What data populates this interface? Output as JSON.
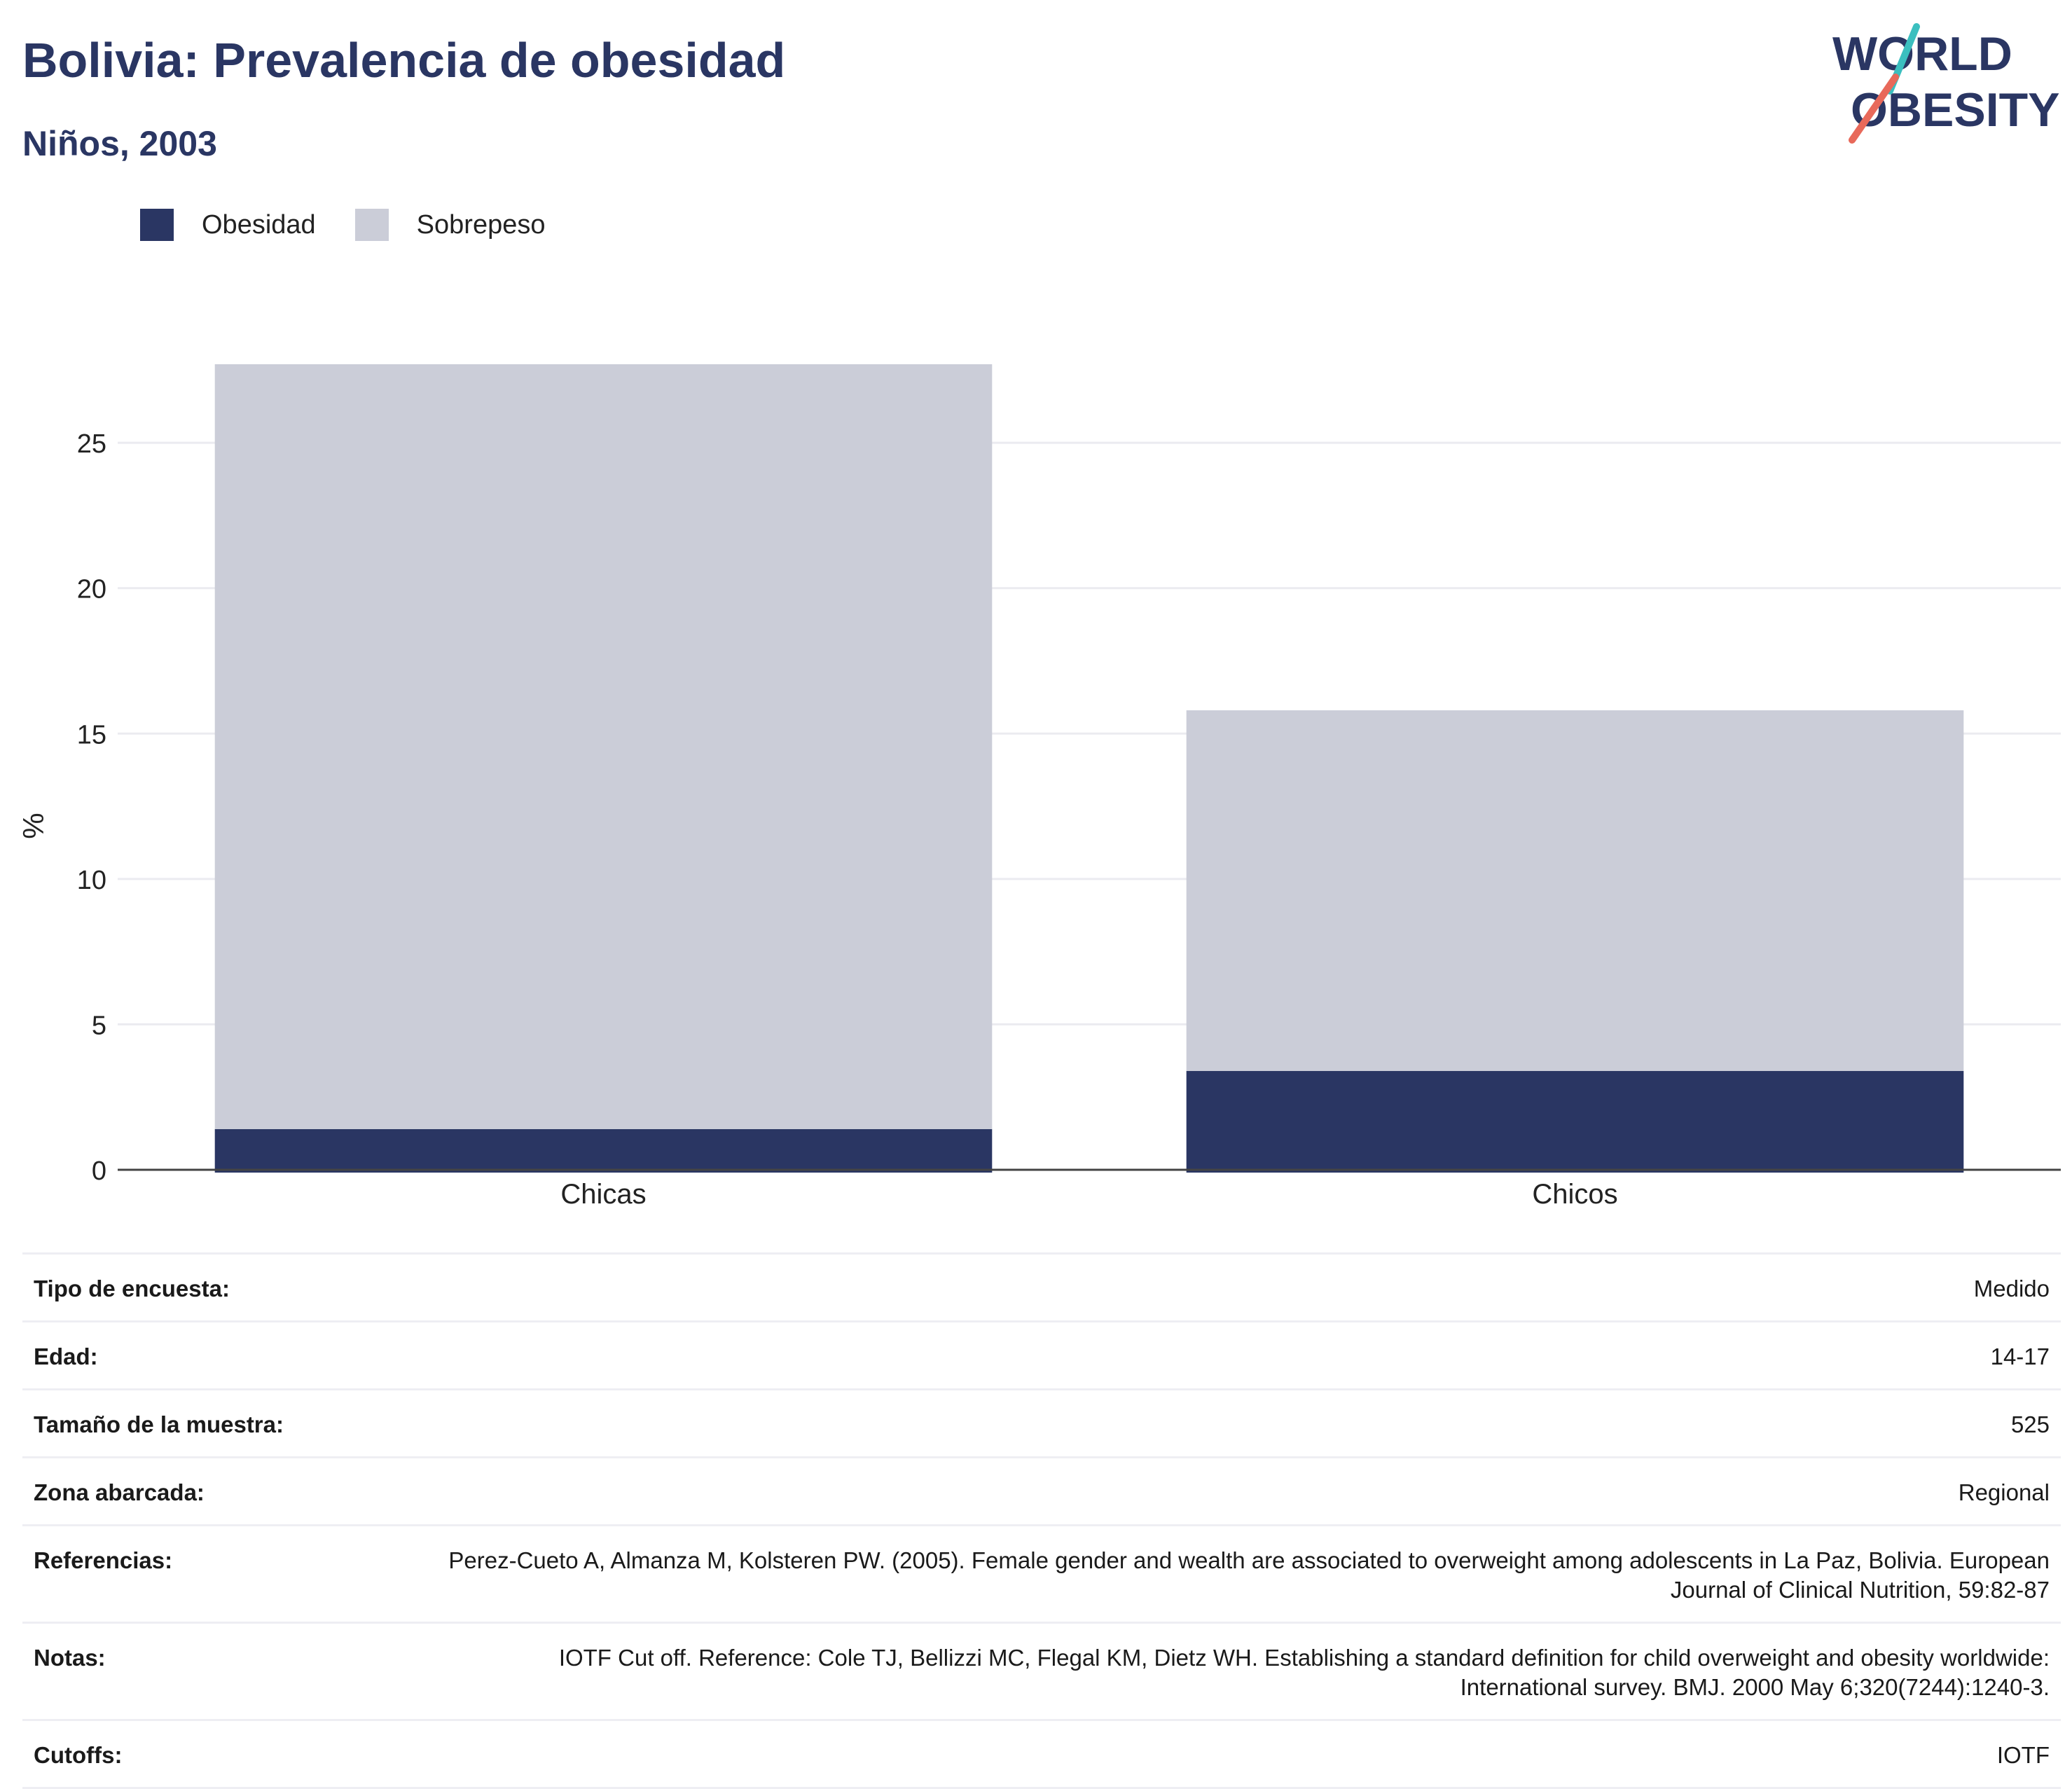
{
  "header": {
    "title": "Bolivia: Prevalencia de obesidad",
    "subtitle": "Niños, 2003"
  },
  "logo": {
    "line1": "WORLD",
    "line2": "OBESITY"
  },
  "colors": {
    "obesidad": "#2a3663",
    "sobrepeso": "#cbcdd8",
    "brand": "#2a3663",
    "accent_red": "#e8695a",
    "accent_teal": "#3bbfbf"
  },
  "chart_data": {
    "type": "bar",
    "stacked": true,
    "categories": [
      "Chicas",
      "Chicos"
    ],
    "series": [
      {
        "name": "Obesidad",
        "values": [
          1.4,
          3.4
        ],
        "color": "#2a3663"
      },
      {
        "name": "Sobrepeso",
        "values": [
          26.3,
          12.4
        ],
        "color": "#cbcdd8"
      }
    ],
    "ylabel": "%",
    "xlabel": "",
    "ylim": [
      0,
      27.7
    ],
    "yticks": [
      0,
      5,
      10,
      15,
      20,
      25
    ],
    "grid": true,
    "legend": "top-left"
  },
  "info": [
    {
      "label": "Tipo de encuesta:",
      "value": "Medido"
    },
    {
      "label": "Edad:",
      "value": "14-17"
    },
    {
      "label": "Tamaño de la muestra:",
      "value": "525"
    },
    {
      "label": "Zona abarcada:",
      "value": "Regional"
    },
    {
      "label": "Referencias:",
      "value": "Perez-Cueto A, Almanza M, Kolsteren PW. (2005). Female gender and wealth are associated to overweight among adolescents in La Paz, Bolivia. European Journal of Clinical Nutrition, 59:82-87"
    },
    {
      "label": "Notas:",
      "value": "IOTF Cut off. Reference: Cole TJ, Bellizzi MC, Flegal KM, Dietz WH. Establishing a standard definition for child overweight and obesity worldwide: International survey. BMJ. 2000 May 6;320(7244):1240-3."
    },
    {
      "label": "Cutoffs:",
      "value": "IOTF"
    }
  ]
}
